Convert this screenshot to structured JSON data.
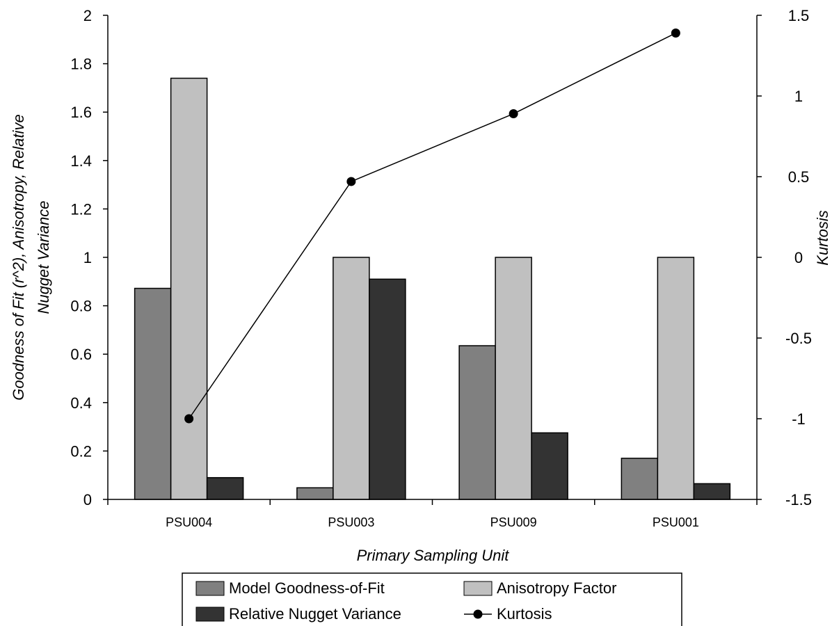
{
  "chart_data": {
    "type": "bar",
    "categories": [
      "PSU004",
      "PSU003",
      "PSU009",
      "PSU001"
    ],
    "series": [
      {
        "name": "Model Goodness-of-Fit",
        "values": [
          0.872,
          0.048,
          0.635,
          0.17
        ],
        "color": "#808080",
        "axis": "left",
        "kind": "bar"
      },
      {
        "name": "Anisotropy Factor",
        "values": [
          1.74,
          1.0,
          1.0,
          1.0
        ],
        "color": "#c0c0c0",
        "axis": "left",
        "kind": "bar"
      },
      {
        "name": "Relative Nugget Variance",
        "values": [
          0.09,
          0.91,
          0.275,
          0.065
        ],
        "color": "#333333",
        "axis": "left",
        "kind": "bar"
      },
      {
        "name": "Kurtosis",
        "values": [
          -1.0,
          0.47,
          0.89,
          1.39
        ],
        "color": "#000000",
        "axis": "right",
        "kind": "line"
      }
    ],
    "xlabel": "Primary Sampling Unit",
    "ylabel_lines": [
      "Goodness of Fit (r^2), Anisotropy, Relative",
      "Nugget Variance"
    ],
    "y2label": "Kurtosis",
    "ylim": [
      0,
      2
    ],
    "y2lim": [
      -1.5,
      1.5
    ],
    "yticks": [
      "0",
      "0.2",
      "0.4",
      "0.6",
      "0.8",
      "1",
      "1.2",
      "1.4",
      "1.6",
      "1.8",
      "2"
    ],
    "y2ticks": [
      "-1.5",
      "-1",
      "-0.5",
      "0",
      "0.5",
      "1",
      "1.5"
    ],
    "grid": false,
    "legend_position": "bottom"
  }
}
